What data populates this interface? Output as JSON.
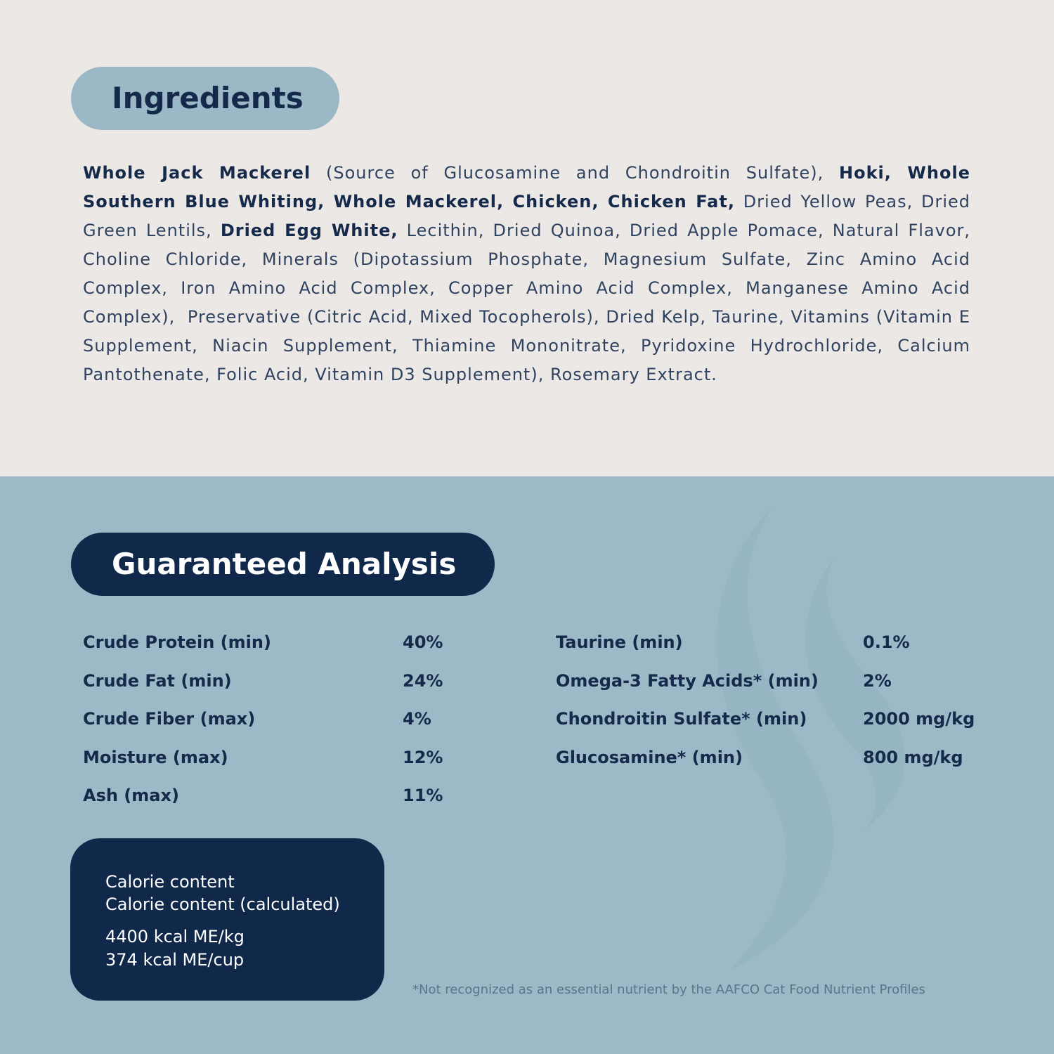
{
  "ingredients": {
    "title": "Ingredients",
    "segments": [
      {
        "text": "Whole Jack Mackerel",
        "bold": true
      },
      {
        "text": " (Source of Glucosamine and Chondroitin Sulfate), ",
        "bold": false
      },
      {
        "text": "Hoki, Whole Southern Blue Whiting, Whole Mackerel, Chicken, Chicken Fat,",
        "bold": true
      },
      {
        "text": " Dried Yellow Peas, Dried Green Lentils, ",
        "bold": false
      },
      {
        "text": "Dried Egg White,",
        "bold": true
      },
      {
        "text": " Lecithin, Dried Quinoa, Dried Apple Pomace, Natural Flavor, Choline Chloride, Minerals (Dipotassium Phosphate, Magnesium Sulfate, Zinc Amino Acid Complex, Iron Amino Acid Complex, Copper Amino Acid Complex, Manganese Amino Acid Complex),  Preservative (Citric Acid, Mixed Tocopherols), Dried Kelp, Taurine, Vitamins (Vitamin E Supplement, Niacin Supplement, Thiamine Mononitrate, Pyridoxine Hydrochloride, Calcium Pantothenate, Folic Acid, Vitamin D3 Supplement), Rosemary Extract.",
        "bold": false
      }
    ]
  },
  "analysis": {
    "title": "Guaranteed Analysis",
    "columns": [
      [
        [
          "Crude Protein (min)",
          "40%"
        ],
        [
          "Crude Fat (min)",
          "24%"
        ],
        [
          "Crude Fiber (max)",
          "4%"
        ],
        [
          "Moisture (max)",
          "12%"
        ],
        [
          "Ash (max)",
          "11%"
        ]
      ],
      [
        [
          "Taurine (min)",
          "0.1%"
        ],
        [
          "Omega-3 Fatty Acids* (min)",
          "2%"
        ],
        [
          "Chondroitin Sulfate* (min)",
          "2000 mg/kg"
        ],
        [
          "Glucosamine* (min)",
          "800 mg/kg"
        ]
      ]
    ],
    "calorie": {
      "labels": [
        "Calorie content",
        "Calorie content (calculated)"
      ],
      "values": [
        "4400 kcal ME/kg",
        "374 kcal ME/cup"
      ]
    },
    "footnote": "*Not recognized as an essential nutrient by the AAFCO Cat Food Nutrient Profiles"
  }
}
